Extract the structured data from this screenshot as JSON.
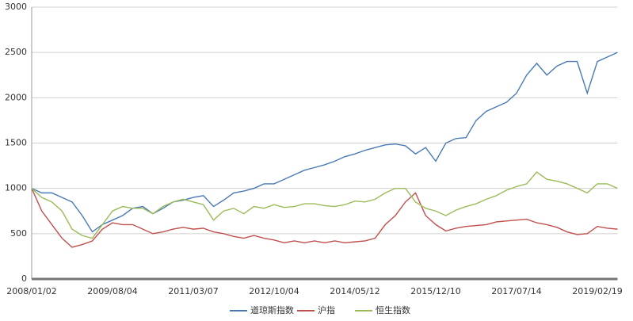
{
  "chart_data": {
    "type": "line",
    "categories": [
      "2008/01/02",
      null,
      null,
      null,
      null,
      null,
      null,
      null,
      "2009/08/04",
      null,
      null,
      null,
      null,
      null,
      null,
      null,
      "2011/03/07",
      null,
      null,
      null,
      null,
      null,
      null,
      null,
      "2012/10/04",
      null,
      null,
      null,
      null,
      null,
      null,
      null,
      "2014/05/12",
      null,
      null,
      null,
      null,
      null,
      null,
      null,
      "2015/12/10",
      null,
      null,
      null,
      null,
      null,
      null,
      null,
      "2017/07/14",
      null,
      null,
      null,
      null,
      null,
      null,
      null,
      "2019/02/19",
      null,
      null
    ],
    "series": [
      {
        "name": "道琼斯指数",
        "color": "#4a7ab5",
        "values": [
          1000,
          950,
          950,
          900,
          850,
          700,
          520,
          600,
          650,
          700,
          780,
          800,
          720,
          780,
          850,
          870,
          900,
          920,
          800,
          870,
          950,
          970,
          1000,
          1050,
          1050,
          1100,
          1150,
          1200,
          1230,
          1260,
          1300,
          1350,
          1380,
          1420,
          1450,
          1480,
          1490,
          1470,
          1380,
          1450,
          1300,
          1500,
          1550,
          1560,
          1750,
          1850,
          1900,
          1950,
          2050,
          2250,
          2380,
          2250,
          2350,
          2400,
          2400,
          2050,
          2400,
          2450,
          2500
        ]
      },
      {
        "name": "沪指",
        "color": "#c0504d",
        "values": [
          1000,
          750,
          600,
          450,
          350,
          380,
          420,
          550,
          620,
          600,
          600,
          550,
          500,
          520,
          550,
          570,
          550,
          560,
          520,
          500,
          470,
          450,
          480,
          450,
          430,
          400,
          420,
          400,
          420,
          400,
          420,
          400,
          410,
          420,
          450,
          600,
          700,
          850,
          950,
          700,
          600,
          530,
          560,
          580,
          590,
          600,
          630,
          640,
          650,
          660,
          620,
          600,
          570,
          520,
          490,
          500,
          580,
          560,
          550
        ]
      },
      {
        "name": "恒生指数",
        "color": "#9bbb59",
        "values": [
          1000,
          900,
          850,
          750,
          550,
          480,
          450,
          600,
          750,
          800,
          780,
          780,
          720,
          800,
          850,
          880,
          850,
          820,
          650,
          750,
          780,
          720,
          800,
          780,
          820,
          790,
          800,
          830,
          830,
          810,
          800,
          820,
          860,
          850,
          880,
          950,
          1000,
          1000,
          850,
          780,
          750,
          700,
          760,
          800,
          830,
          880,
          920,
          980,
          1020,
          1050,
          1180,
          1100,
          1080,
          1050,
          1000,
          950,
          1050,
          1050,
          1000
        ]
      }
    ],
    "ylim": [
      0,
      3000
    ],
    "yticks": [
      0,
      500,
      1000,
      1500,
      2000,
      2500,
      3000
    ],
    "grid": true,
    "legend": "bottom"
  }
}
